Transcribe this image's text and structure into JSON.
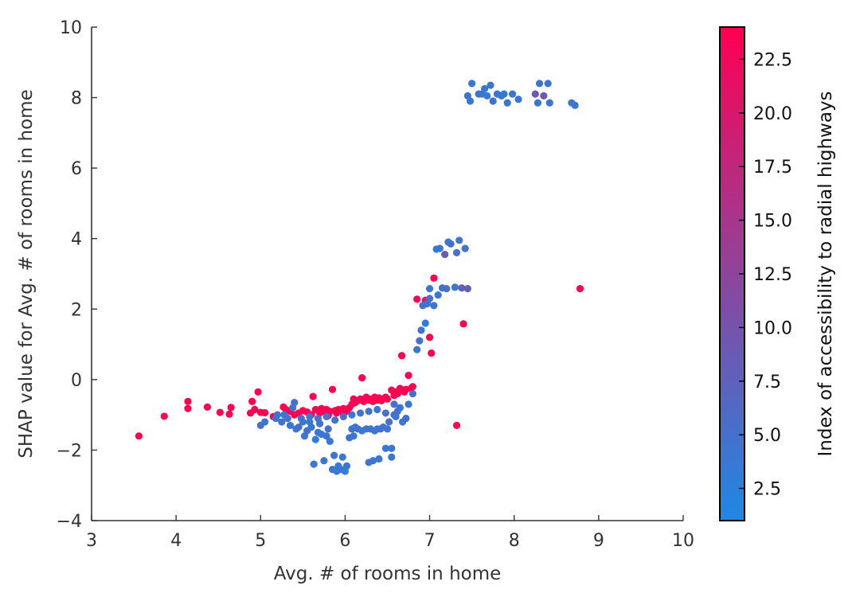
{
  "chart_data": {
    "type": "scatter",
    "xlabel": "Avg. # of rooms in home",
    "ylabel": "SHAP value for Avg. # of rooms in home",
    "xlim": [
      3,
      10
    ],
    "ylim": [
      -4,
      10
    ],
    "x_ticks": [
      "3",
      "4",
      "5",
      "6",
      "7",
      "8",
      "9",
      "10"
    ],
    "y_ticks": [
      "−4",
      "−2",
      "0",
      "2",
      "4",
      "6",
      "8",
      "10"
    ],
    "colorbar": {
      "label": "Index of accessibility to radial highways",
      "range": [
        1,
        24
      ],
      "ticks": [
        "2.5",
        "5.0",
        "7.5",
        "10.0",
        "12.5",
        "15.0",
        "17.5",
        "20.0",
        "22.5"
      ],
      "colors": [
        "#1e88e5",
        "#ff0052"
      ]
    },
    "grid": false,
    "points": [
      [
        3.56,
        -1.6,
        24
      ],
      [
        3.86,
        -1.04,
        24
      ],
      [
        4.14,
        -0.62,
        24
      ],
      [
        4.14,
        -0.82,
        24
      ],
      [
        4.37,
        -0.78,
        24
      ],
      [
        4.52,
        -0.93,
        24
      ],
      [
        4.63,
        -0.98,
        24
      ],
      [
        4.65,
        -0.79,
        24
      ],
      [
        4.88,
        -0.95,
        24
      ],
      [
        4.9,
        -0.62,
        24
      ],
      [
        4.93,
        -0.85,
        24
      ],
      [
        4.97,
        -0.35,
        24
      ],
      [
        5.0,
        -0.93,
        24
      ],
      [
        5.05,
        -0.94,
        24
      ],
      [
        5.15,
        -1.05,
        24
      ],
      [
        5.27,
        -0.78,
        24
      ],
      [
        5.3,
        -0.85,
        24
      ],
      [
        5.35,
        -0.9,
        24
      ],
      [
        5.4,
        -1.0,
        24
      ],
      [
        5.45,
        -0.95,
        24
      ],
      [
        5.5,
        -0.88,
        24
      ],
      [
        5.55,
        -0.92,
        24
      ],
      [
        5.6,
        -1.0,
        24
      ],
      [
        5.62,
        -0.48,
        24
      ],
      [
        5.65,
        -0.85,
        24
      ],
      [
        5.7,
        -0.95,
        24
      ],
      [
        5.72,
        -0.82,
        24
      ],
      [
        5.75,
        -0.9,
        24
      ],
      [
        5.78,
        -0.85,
        24
      ],
      [
        5.8,
        -1.02,
        24
      ],
      [
        5.82,
        -0.9,
        24
      ],
      [
        5.85,
        -0.28,
        24
      ],
      [
        5.88,
        -0.88,
        24
      ],
      [
        5.9,
        -0.95,
        24
      ],
      [
        5.92,
        -0.85,
        24
      ],
      [
        5.95,
        -0.9,
        24
      ],
      [
        5.98,
        -0.82,
        24
      ],
      [
        6.0,
        -0.92,
        24
      ],
      [
        6.02,
        -0.88,
        24
      ],
      [
        6.05,
        -0.8,
        24
      ],
      [
        6.08,
        -0.7,
        24
      ],
      [
        6.1,
        -0.55,
        24
      ],
      [
        6.12,
        -0.65,
        24
      ],
      [
        6.15,
        -0.6,
        24
      ],
      [
        6.18,
        -0.55,
        24
      ],
      [
        6.2,
        0.05,
        24
      ],
      [
        6.22,
        -0.62,
        24
      ],
      [
        6.25,
        -0.5,
        24
      ],
      [
        6.28,
        -0.58,
        24
      ],
      [
        6.3,
        -0.55,
        24
      ],
      [
        6.33,
        -0.62,
        24
      ],
      [
        6.35,
        -0.5,
        24
      ],
      [
        6.38,
        -0.58,
        24
      ],
      [
        6.4,
        -0.52,
        24
      ],
      [
        6.43,
        -0.6,
        24
      ],
      [
        6.45,
        -0.55,
        24
      ],
      [
        6.48,
        -0.5,
        24
      ],
      [
        6.5,
        -0.55,
        24
      ],
      [
        6.55,
        -0.3,
        24
      ],
      [
        6.58,
        -0.45,
        24
      ],
      [
        6.6,
        -0.35,
        24
      ],
      [
        6.62,
        -0.4,
        24
      ],
      [
        6.65,
        -0.25,
        24
      ],
      [
        6.68,
        -0.3,
        24
      ],
      [
        6.7,
        -0.35,
        24
      ],
      [
        6.72,
        -0.28,
        24
      ],
      [
        6.75,
        0.12,
        24
      ],
      [
        6.78,
        -0.25,
        24
      ],
      [
        6.8,
        -0.2,
        24
      ],
      [
        6.67,
        0.68,
        24
      ],
      [
        6.85,
        2.28,
        24
      ],
      [
        6.98,
        2.25,
        24
      ],
      [
        7.05,
        2.88,
        24
      ],
      [
        7.0,
        1.2,
        24
      ],
      [
        7.02,
        0.75,
        24
      ],
      [
        7.32,
        -1.3,
        24
      ],
      [
        7.4,
        1.58,
        24
      ],
      [
        8.78,
        2.58,
        24
      ],
      [
        6.95,
        2.25,
        20
      ],
      [
        5.18,
        -1.1,
        5
      ],
      [
        5.2,
        -1.0,
        4
      ],
      [
        5.35,
        -1.3,
        4
      ],
      [
        5.4,
        -0.65,
        5
      ],
      [
        5.42,
        -1.4,
        4
      ],
      [
        5.45,
        -1.35,
        5
      ],
      [
        5.5,
        -1.2,
        4
      ],
      [
        5.52,
        -1.6,
        4
      ],
      [
        5.55,
        -1.45,
        5
      ],
      [
        5.58,
        -1.2,
        4
      ],
      [
        5.6,
        -1.35,
        4
      ],
      [
        5.63,
        -2.4,
        4
      ],
      [
        5.65,
        -1.7,
        3
      ],
      [
        5.68,
        -1.5,
        4
      ],
      [
        5.7,
        -1.25,
        5
      ],
      [
        5.72,
        -1.55,
        4
      ],
      [
        5.75,
        -2.3,
        4
      ],
      [
        5.78,
        -1.6,
        4
      ],
      [
        5.8,
        -1.4,
        5
      ],
      [
        5.82,
        -1.75,
        4
      ],
      [
        5.85,
        -2.55,
        4
      ],
      [
        5.87,
        -2.15,
        4
      ],
      [
        5.9,
        -2.6,
        4
      ],
      [
        5.92,
        -2.45,
        3
      ],
      [
        5.95,
        -2.55,
        4
      ],
      [
        5.97,
        -2.2,
        4
      ],
      [
        6.0,
        -2.6,
        3
      ],
      [
        6.02,
        -2.45,
        4
      ],
      [
        6.05,
        -1.65,
        4
      ],
      [
        6.08,
        -1.4,
        5
      ],
      [
        6.1,
        -1.6,
        4
      ],
      [
        6.12,
        -1.35,
        4
      ],
      [
        6.15,
        -1.4,
        5
      ],
      [
        6.2,
        -1.45,
        4
      ],
      [
        6.25,
        -1.4,
        4
      ],
      [
        6.28,
        -2.35,
        4
      ],
      [
        6.3,
        -1.4,
        5
      ],
      [
        6.33,
        -2.3,
        4
      ],
      [
        6.35,
        -1.45,
        4
      ],
      [
        6.38,
        -1.4,
        4
      ],
      [
        6.4,
        -2.25,
        4
      ],
      [
        6.42,
        -1.4,
        5
      ],
      [
        6.45,
        -1.35,
        4
      ],
      [
        6.48,
        -1.95,
        4
      ],
      [
        6.5,
        -1.4,
        4
      ],
      [
        6.52,
        -1.2,
        5
      ],
      [
        6.55,
        -1.95,
        4
      ],
      [
        6.55,
        -2.2,
        4
      ],
      [
        6.58,
        -1.0,
        5
      ],
      [
        6.6,
        -1.05,
        4
      ],
      [
        6.62,
        -0.9,
        5
      ],
      [
        6.65,
        -0.8,
        4
      ],
      [
        6.68,
        -1.2,
        4
      ],
      [
        6.72,
        -1.1,
        5
      ],
      [
        6.75,
        -0.7,
        4
      ],
      [
        6.8,
        -0.4,
        5
      ],
      [
        6.85,
        0.85,
        4
      ],
      [
        6.88,
        1.1,
        5
      ],
      [
        6.9,
        1.4,
        4
      ],
      [
        6.92,
        2.1,
        5
      ],
      [
        6.95,
        1.6,
        3
      ],
      [
        6.97,
        2.15,
        4
      ],
      [
        7.0,
        2.3,
        5
      ],
      [
        7.0,
        2.58,
        4
      ],
      [
        7.05,
        2.1,
        4
      ],
      [
        7.08,
        3.7,
        3
      ],
      [
        7.1,
        2.4,
        4
      ],
      [
        7.12,
        3.72,
        4
      ],
      [
        7.15,
        2.6,
        5
      ],
      [
        7.18,
        3.55,
        9
      ],
      [
        7.2,
        2.58,
        5
      ],
      [
        7.22,
        3.9,
        4
      ],
      [
        7.25,
        3.85,
        5
      ],
      [
        7.3,
        2.62,
        4
      ],
      [
        7.32,
        3.6,
        5
      ],
      [
        7.35,
        3.95,
        4
      ],
      [
        7.38,
        2.6,
        8
      ],
      [
        7.42,
        3.72,
        5
      ],
      [
        7.45,
        2.58,
        8
      ],
      [
        5.0,
        -1.3,
        5
      ],
      [
        5.05,
        -1.2,
        4
      ],
      [
        5.25,
        -1.2,
        5
      ],
      [
        5.28,
        -1.0,
        4
      ],
      [
        5.32,
        -1.1,
        5
      ],
      [
        5.38,
        -0.8,
        4
      ],
      [
        5.48,
        -1.1,
        5
      ],
      [
        5.58,
        -1.05,
        4
      ],
      [
        5.68,
        -1.1,
        5
      ],
      [
        5.78,
        -1.05,
        5
      ],
      [
        5.88,
        -1.15,
        4
      ],
      [
        5.98,
        -1.05,
        5
      ],
      [
        6.08,
        -1.0,
        4
      ],
      [
        6.18,
        -0.95,
        5
      ],
      [
        6.28,
        -0.9,
        5
      ],
      [
        6.38,
        -0.85,
        4
      ],
      [
        6.48,
        -0.95,
        5
      ],
      [
        6.58,
        -0.7,
        5
      ],
      [
        7.45,
        8.05,
        4
      ],
      [
        7.48,
        7.9,
        4
      ],
      [
        7.5,
        8.4,
        4
      ],
      [
        7.58,
        8.1,
        4
      ],
      [
        7.62,
        8.1,
        4
      ],
      [
        7.65,
        8.25,
        4
      ],
      [
        7.68,
        8.05,
        3
      ],
      [
        7.72,
        8.35,
        4
      ],
      [
        7.75,
        7.9,
        4
      ],
      [
        7.8,
        8.1,
        4
      ],
      [
        7.85,
        8.05,
        5
      ],
      [
        7.88,
        8.1,
        3
      ],
      [
        7.92,
        7.85,
        4
      ],
      [
        7.98,
        8.1,
        4
      ],
      [
        8.05,
        7.95,
        4
      ],
      [
        8.25,
        8.1,
        9
      ],
      [
        8.28,
        7.85,
        4
      ],
      [
        8.3,
        8.4,
        4
      ],
      [
        8.35,
        8.05,
        9
      ],
      [
        8.4,
        8.4,
        4
      ],
      [
        8.42,
        7.85,
        4
      ],
      [
        8.68,
        7.85,
        5
      ],
      [
        8.72,
        7.78,
        4
      ]
    ]
  }
}
